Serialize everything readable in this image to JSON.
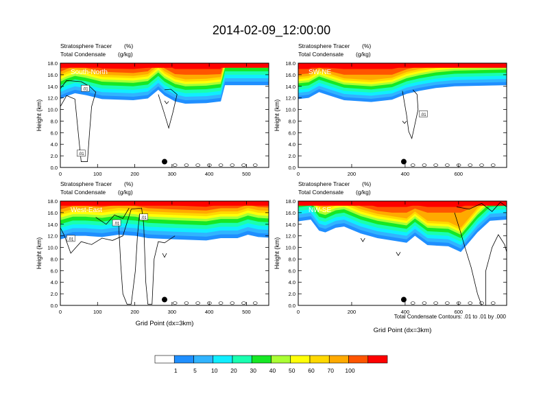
{
  "figure": {
    "title": "2014-02-09_12:00:00",
    "contour_note": "Total Condensate Contours: .01 to .01 by .000",
    "x_axis_label": "Grid Point (dx=3km)"
  },
  "colors": {
    "levels": [
      "#ffffff",
      "#1f8fff",
      "#31b4ff",
      "#10eeff",
      "#19ffb0",
      "#16e825",
      "#aaff33",
      "#ffff08",
      "#ffd800",
      "#ffaa00",
      "#ff5500",
      "#ff0000"
    ],
    "contour": "#000000",
    "marker": "#000000"
  },
  "chart_data": [
    {
      "type": "heatmap",
      "panel": "South-North",
      "label": "South-North",
      "subtitle_left_1": "Stratosphere Tracer",
      "subtitle_unit_1": "(%)",
      "subtitle_left_2": "Total Condensate",
      "subtitle_unit_2": "(g/kg)",
      "ylabel": "Height (km)",
      "xlabel": "",
      "xlim": [
        0,
        560
      ],
      "ylim": [
        0,
        18
      ],
      "xticks": [
        0,
        100,
        200,
        300,
        400,
        500
      ],
      "yticks": [
        "0.0",
        "2.0",
        "4.0",
        "6.0",
        "8.0",
        "10.0",
        "12.0",
        "14.0",
        "16.0",
        "18.0"
      ],
      "contour_labels": [
        ".01",
        ".01"
      ],
      "marker_x": 280,
      "marker_y": 1.0,
      "layer_tops": [
        {
          "level": 1,
          "x": [
            0,
            40,
            80,
            120,
            160,
            200,
            240,
            260,
            280,
            300,
            330,
            360,
            400,
            440,
            480,
            520,
            560
          ],
          "y": [
            12.0,
            12.2,
            12.5,
            12.4,
            11.8,
            11.8,
            11.9,
            12.2,
            13.0,
            12.6,
            11.7,
            11.1,
            11.2,
            11.5,
            14.2,
            14.2,
            14.2
          ]
        }
      ]
    },
    {
      "type": "heatmap",
      "panel": "SW-NE",
      "label": "SW-NE",
      "subtitle_left_1": "Stratosphere Tracer",
      "subtitle_unit_1": "(%)",
      "subtitle_left_2": "Total Condensate",
      "subtitle_unit_2": "(g/kg)",
      "ylabel": "Height (km)",
      "xlabel": "",
      "xlim": [
        0,
        780
      ],
      "ylim": [
        0,
        18
      ],
      "xticks": [
        0,
        200,
        400,
        600
      ],
      "yticks": [
        "0.0",
        "2.0",
        "4.0",
        "6.0",
        "8.0",
        "10.0",
        "12.0",
        "14.0",
        "16.0",
        "18.0"
      ],
      "contour_labels": [
        ".01"
      ],
      "marker_x": 395,
      "marker_y": 1.0,
      "layer_tops": []
    },
    {
      "type": "heatmap",
      "panel": "West-East",
      "label": "West-East",
      "subtitle_left_1": "Stratosphere Tracer",
      "subtitle_unit_1": "(%)",
      "subtitle_left_2": "Total Condensate",
      "subtitle_unit_2": "(g/kg)",
      "ylabel": "Height (km)",
      "xlabel": "Grid Point (dx=3km)",
      "xlim": [
        0,
        560
      ],
      "ylim": [
        0,
        18
      ],
      "xticks": [
        0,
        100,
        200,
        300,
        400,
        500
      ],
      "yticks": [
        "0.0",
        "2.0",
        "4.0",
        "6.0",
        "8.0",
        "10.0",
        "12.0",
        "14.0",
        "16.0",
        "18.0"
      ],
      "contour_labels": [
        ".01",
        ".01",
        ".01"
      ],
      "marker_x": 280,
      "marker_y": 1.0,
      "layer_tops": []
    },
    {
      "type": "heatmap",
      "panel": "NW-SE",
      "label": "NW-SE",
      "subtitle_left_1": "Stratosphere Tracer",
      "subtitle_unit_1": "(%)",
      "subtitle_left_2": "Total Condensate",
      "subtitle_unit_2": "(g/kg)",
      "ylabel": "Height (km)",
      "xlabel": "Grid Point (dx=3km)",
      "xlim": [
        0,
        780
      ],
      "ylim": [
        0,
        18
      ],
      "xticks": [
        0,
        200,
        400,
        600
      ],
      "yticks": [
        "0.0",
        "2.0",
        "4.0",
        "6.0",
        "8.0",
        "10.0",
        "12.0",
        "14.0",
        "16.0",
        "18.0"
      ],
      "contour_labels": [],
      "marker_x": 395,
      "marker_y": 1.0,
      "layer_tops": []
    }
  ],
  "colorbar": {
    "labels": [
      "1",
      "5",
      "10",
      "20",
      "30",
      "40",
      "50",
      "60",
      "70",
      "100"
    ]
  }
}
